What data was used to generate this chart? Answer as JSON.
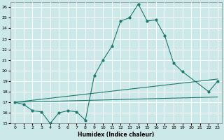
{
  "title": "",
  "xlabel": "Humidex (Indice chaleur)",
  "background_color": "#cce8e8",
  "grid_color": "#ffffff",
  "line_color": "#1a7a6e",
  "xlim": [
    -0.5,
    23.5
  ],
  "ylim": [
    15,
    26.5
  ],
  "yticks": [
    15,
    16,
    17,
    18,
    19,
    20,
    21,
    22,
    23,
    24,
    25,
    26
  ],
  "xticks": [
    0,
    1,
    2,
    3,
    4,
    5,
    6,
    7,
    8,
    9,
    10,
    11,
    12,
    13,
    14,
    15,
    16,
    17,
    18,
    19,
    20,
    21,
    22,
    23
  ],
  "line1_x": [
    0,
    1,
    2,
    3,
    4,
    5,
    6,
    7,
    8,
    9,
    10,
    11,
    12,
    13,
    14,
    15,
    16,
    17,
    18,
    19,
    22,
    23
  ],
  "line1_y": [
    17.0,
    16.8,
    16.2,
    16.1,
    15.0,
    16.0,
    16.2,
    16.1,
    15.3,
    19.5,
    21.0,
    22.3,
    24.7,
    25.0,
    26.3,
    24.7,
    24.8,
    23.3,
    20.7,
    19.9,
    18.0,
    19.0
  ],
  "line2_x": [
    0,
    23
  ],
  "line2_y": [
    17.0,
    17.5
  ],
  "line3_x": [
    0,
    23
  ],
  "line3_y": [
    17.0,
    19.2
  ]
}
